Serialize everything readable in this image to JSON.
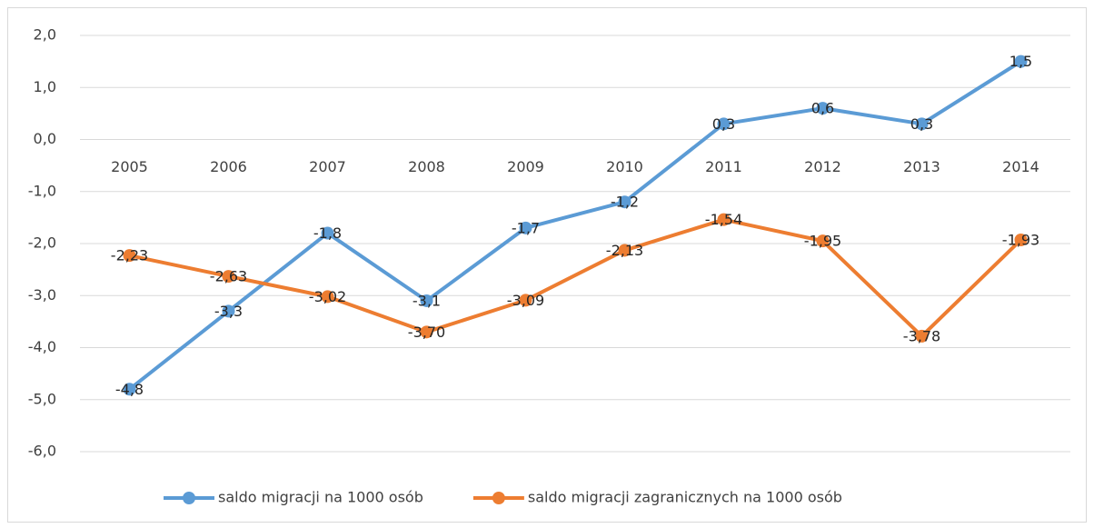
{
  "chart_data": {
    "type": "line",
    "categories": [
      "2005",
      "2006",
      "2007",
      "2008",
      "2009",
      "2010",
      "2011",
      "2012",
      "2013",
      "2014"
    ],
    "series": [
      {
        "name": "saldo migracji na 1000 osób",
        "color": "#5b9bd5",
        "values": [
          -4.8,
          -3.3,
          -1.8,
          -3.1,
          -1.7,
          -1.2,
          0.3,
          0.6,
          0.3,
          1.5
        ],
        "value_labels": [
          "-4,8",
          "-3,3",
          "-1,8",
          "-3,1",
          "-1,7",
          "-1,2",
          "0,3",
          "0,6",
          "0,3",
          "1,5"
        ]
      },
      {
        "name": "saldo migracji zagranicznych na 1000 osób",
        "color": "#ed7d31",
        "values": [
          -2.23,
          -2.63,
          -3.02,
          -3.7,
          -3.09,
          -2.13,
          -1.54,
          -1.95,
          -3.78,
          -1.93
        ],
        "value_labels": [
          "-2,23",
          "-2,63",
          "-3,02",
          "-3,70",
          "-3,09",
          "-2,13",
          "-1,54",
          "-1,95",
          "-3,78",
          "-1,93"
        ]
      }
    ],
    "ylim": [
      -6,
      2
    ],
    "yticks": [
      {
        "value": -6,
        "label": "-6,0"
      },
      {
        "value": -5,
        "label": "-5,0"
      },
      {
        "value": -4,
        "label": "-4,0"
      },
      {
        "value": -3,
        "label": "-3,0"
      },
      {
        "value": -2,
        "label": "-2,0"
      },
      {
        "value": -1,
        "label": "-1,0"
      },
      {
        "value": 0,
        "label": "0,0"
      },
      {
        "value": 1,
        "label": "1,0"
      },
      {
        "value": 2,
        "label": "2,0"
      }
    ],
    "grid": true,
    "legend": "bottom"
  }
}
